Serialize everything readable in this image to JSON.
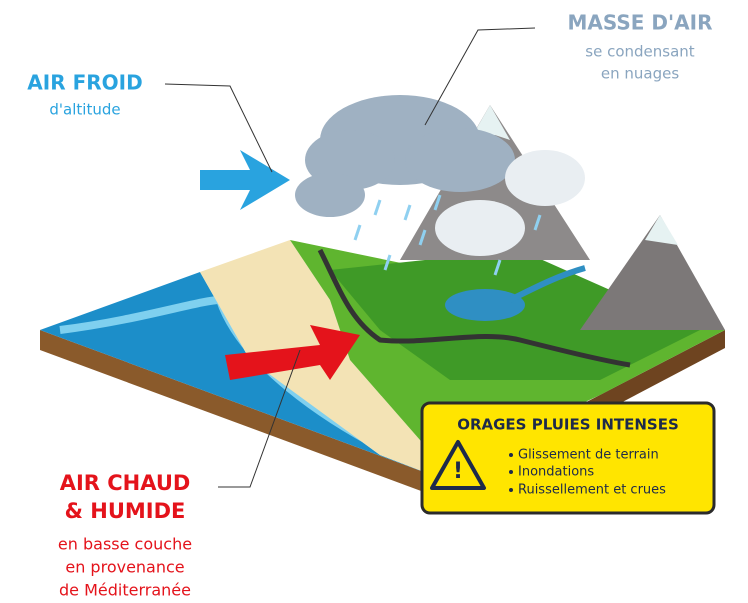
{
  "labels": {
    "masse_air": {
      "title": "MASSE D'AIR",
      "lines": [
        "se condensant",
        "en nuages"
      ]
    },
    "air_froid": {
      "title": "AIR FROID",
      "lines": [
        "d'altitude"
      ]
    },
    "air_chaud": {
      "title_lines": [
        "AIR CHAUD",
        "& HUMIDE"
      ],
      "lines": [
        "en basse couche",
        "en provenance",
        "de Méditerranée"
      ]
    }
  },
  "alert_box": {
    "title": "ORAGES PLUIES INTENSES",
    "warning_symbol": "!",
    "items": [
      "Glissement de terrain",
      "Inondations",
      "Ruissellement et crues"
    ]
  }
}
